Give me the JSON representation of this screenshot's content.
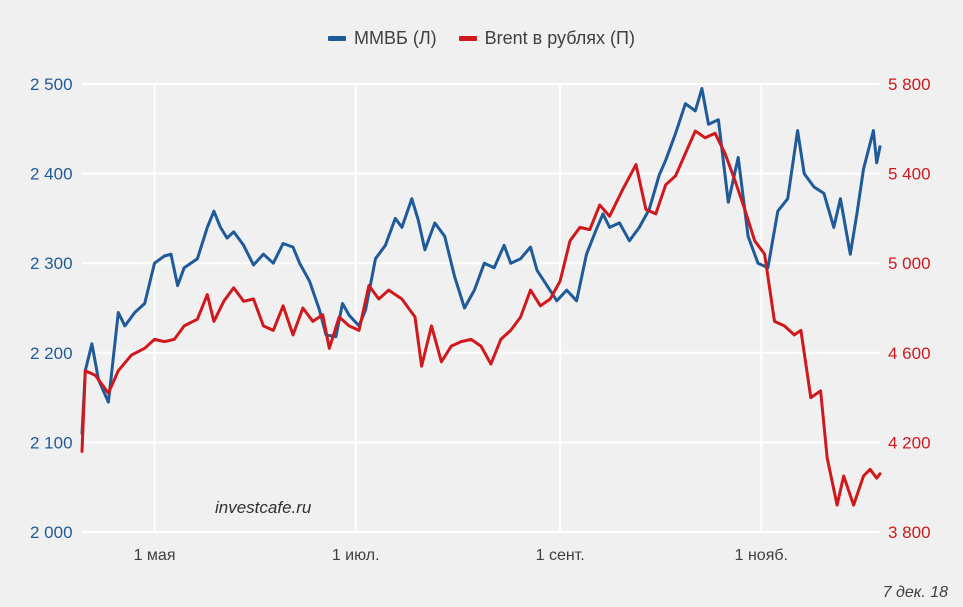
{
  "chart_data": {
    "type": "line",
    "legend_position": "top-center",
    "grid": true,
    "x_tick_labels": [
      "1 мая",
      "1 июл.",
      "1 сент.",
      "1 нояб."
    ],
    "x_tick_dates": [
      "2018-05-01",
      "2018-07-01",
      "2018-09-01",
      "2018-11-01"
    ],
    "x_range": [
      "2018-04-09",
      "2018-12-07"
    ],
    "y_left": {
      "min": 2000,
      "max": 2500,
      "ticks": [
        2000,
        2100,
        2200,
        2300,
        2400,
        2500
      ],
      "tick_labels": [
        "2 000",
        "2 100",
        "2 200",
        "2 300",
        "2 400",
        "2 500"
      ],
      "color": "#1f5a99"
    },
    "y_right": {
      "min": 3800,
      "max": 5800,
      "ticks": [
        3800,
        4200,
        4600,
        5000,
        5400,
        5800
      ],
      "tick_labels": [
        "3 800",
        "4 200",
        "4 600",
        "5 000",
        "5 400",
        "5 800"
      ],
      "color": "#d0191c"
    },
    "series": [
      {
        "name": "ММВБ (Л)",
        "axis": "left",
        "color": "#1f5a99",
        "points": [
          [
            "2018-04-09",
            2110
          ],
          [
            "2018-04-10",
            2180
          ],
          [
            "2018-04-12",
            2210
          ],
          [
            "2018-04-14",
            2170
          ],
          [
            "2018-04-17",
            2145
          ],
          [
            "2018-04-20",
            2245
          ],
          [
            "2018-04-22",
            2230
          ],
          [
            "2018-04-25",
            2245
          ],
          [
            "2018-04-28",
            2255
          ],
          [
            "2018-05-01",
            2300
          ],
          [
            "2018-05-04",
            2308
          ],
          [
            "2018-05-06",
            2310
          ],
          [
            "2018-05-08",
            2275
          ],
          [
            "2018-05-10",
            2295
          ],
          [
            "2018-05-14",
            2305
          ],
          [
            "2018-05-17",
            2340
          ],
          [
            "2018-05-19",
            2358
          ],
          [
            "2018-05-21",
            2340
          ],
          [
            "2018-05-23",
            2328
          ],
          [
            "2018-05-25",
            2335
          ],
          [
            "2018-05-28",
            2320
          ],
          [
            "2018-05-31",
            2298
          ],
          [
            "2018-06-03",
            2310
          ],
          [
            "2018-06-06",
            2300
          ],
          [
            "2018-06-09",
            2322
          ],
          [
            "2018-06-12",
            2318
          ],
          [
            "2018-06-14",
            2300
          ],
          [
            "2018-06-17",
            2280
          ],
          [
            "2018-06-20",
            2248
          ],
          [
            "2018-06-22",
            2220
          ],
          [
            "2018-06-25",
            2218
          ],
          [
            "2018-06-27",
            2255
          ],
          [
            "2018-06-29",
            2242
          ],
          [
            "2018-07-02",
            2230
          ],
          [
            "2018-07-04",
            2248
          ],
          [
            "2018-07-07",
            2305
          ],
          [
            "2018-07-10",
            2320
          ],
          [
            "2018-07-13",
            2350
          ],
          [
            "2018-07-15",
            2340
          ],
          [
            "2018-07-18",
            2372
          ],
          [
            "2018-07-20",
            2348
          ],
          [
            "2018-07-22",
            2315
          ],
          [
            "2018-07-25",
            2345
          ],
          [
            "2018-07-28",
            2330
          ],
          [
            "2018-07-31",
            2285
          ],
          [
            "2018-08-03",
            2250
          ],
          [
            "2018-08-06",
            2270
          ],
          [
            "2018-08-09",
            2300
          ],
          [
            "2018-08-12",
            2295
          ],
          [
            "2018-08-15",
            2320
          ],
          [
            "2018-08-17",
            2300
          ],
          [
            "2018-08-20",
            2305
          ],
          [
            "2018-08-23",
            2318
          ],
          [
            "2018-08-25",
            2292
          ],
          [
            "2018-08-28",
            2275
          ],
          [
            "2018-08-31",
            2258
          ],
          [
            "2018-09-03",
            2270
          ],
          [
            "2018-09-06",
            2258
          ],
          [
            "2018-09-09",
            2310
          ],
          [
            "2018-09-12",
            2338
          ],
          [
            "2018-09-14",
            2355
          ],
          [
            "2018-09-16",
            2340
          ],
          [
            "2018-09-19",
            2345
          ],
          [
            "2018-09-22",
            2325
          ],
          [
            "2018-09-25",
            2340
          ],
          [
            "2018-09-28",
            2360
          ],
          [
            "2018-10-01",
            2398
          ],
          [
            "2018-10-03",
            2415
          ],
          [
            "2018-10-06",
            2445
          ],
          [
            "2018-10-09",
            2478
          ],
          [
            "2018-10-12",
            2470
          ],
          [
            "2018-10-14",
            2495
          ],
          [
            "2018-10-16",
            2455
          ],
          [
            "2018-10-19",
            2460
          ],
          [
            "2018-10-22",
            2368
          ],
          [
            "2018-10-25",
            2418
          ],
          [
            "2018-10-28",
            2330
          ],
          [
            "2018-10-31",
            2300
          ],
          [
            "2018-11-03",
            2295
          ],
          [
            "2018-11-06",
            2358
          ],
          [
            "2018-11-09",
            2372
          ],
          [
            "2018-11-12",
            2448
          ],
          [
            "2018-11-14",
            2400
          ],
          [
            "2018-11-17",
            2385
          ],
          [
            "2018-11-20",
            2378
          ],
          [
            "2018-11-23",
            2340
          ],
          [
            "2018-11-25",
            2372
          ],
          [
            "2018-11-28",
            2310
          ],
          [
            "2018-11-30",
            2355
          ],
          [
            "2018-12-02",
            2405
          ],
          [
            "2018-12-05",
            2448
          ],
          [
            "2018-12-06",
            2412
          ],
          [
            "2018-12-07",
            2430
          ]
        ]
      },
      {
        "name": "Brent в рублях (П)",
        "axis": "right",
        "color": "#d0191c",
        "points": [
          [
            "2018-04-09",
            4160
          ],
          [
            "2018-04-10",
            4520
          ],
          [
            "2018-04-13",
            4500
          ],
          [
            "2018-04-17",
            4420
          ],
          [
            "2018-04-20",
            4520
          ],
          [
            "2018-04-24",
            4590
          ],
          [
            "2018-04-28",
            4620
          ],
          [
            "2018-05-01",
            4660
          ],
          [
            "2018-05-04",
            4650
          ],
          [
            "2018-05-07",
            4660
          ],
          [
            "2018-05-10",
            4720
          ],
          [
            "2018-05-14",
            4750
          ],
          [
            "2018-05-17",
            4860
          ],
          [
            "2018-05-19",
            4740
          ],
          [
            "2018-05-22",
            4830
          ],
          [
            "2018-05-25",
            4890
          ],
          [
            "2018-05-28",
            4830
          ],
          [
            "2018-05-31",
            4840
          ],
          [
            "2018-06-03",
            4720
          ],
          [
            "2018-06-06",
            4700
          ],
          [
            "2018-06-09",
            4810
          ],
          [
            "2018-06-12",
            4680
          ],
          [
            "2018-06-15",
            4800
          ],
          [
            "2018-06-18",
            4740
          ],
          [
            "2018-06-21",
            4770
          ],
          [
            "2018-06-23",
            4620
          ],
          [
            "2018-06-26",
            4760
          ],
          [
            "2018-06-29",
            4720
          ],
          [
            "2018-07-02",
            4700
          ],
          [
            "2018-07-05",
            4900
          ],
          [
            "2018-07-08",
            4840
          ],
          [
            "2018-07-11",
            4880
          ],
          [
            "2018-07-15",
            4840
          ],
          [
            "2018-07-19",
            4760
          ],
          [
            "2018-07-21",
            4540
          ],
          [
            "2018-07-24",
            4720
          ],
          [
            "2018-07-27",
            4560
          ],
          [
            "2018-07-30",
            4630
          ],
          [
            "2018-08-02",
            4650
          ],
          [
            "2018-08-05",
            4660
          ],
          [
            "2018-08-08",
            4630
          ],
          [
            "2018-08-11",
            4550
          ],
          [
            "2018-08-14",
            4660
          ],
          [
            "2018-08-17",
            4700
          ],
          [
            "2018-08-20",
            4760
          ],
          [
            "2018-08-23",
            4880
          ],
          [
            "2018-08-26",
            4810
          ],
          [
            "2018-08-29",
            4840
          ],
          [
            "2018-09-01",
            4920
          ],
          [
            "2018-09-04",
            5100
          ],
          [
            "2018-09-07",
            5160
          ],
          [
            "2018-09-10",
            5150
          ],
          [
            "2018-09-13",
            5260
          ],
          [
            "2018-09-16",
            5210
          ],
          [
            "2018-09-20",
            5330
          ],
          [
            "2018-09-24",
            5440
          ],
          [
            "2018-09-27",
            5240
          ],
          [
            "2018-09-30",
            5220
          ],
          [
            "2018-10-03",
            5350
          ],
          [
            "2018-10-06",
            5390
          ],
          [
            "2018-10-09",
            5490
          ],
          [
            "2018-10-12",
            5590
          ],
          [
            "2018-10-15",
            5560
          ],
          [
            "2018-10-18",
            5580
          ],
          [
            "2018-10-21",
            5490
          ],
          [
            "2018-10-24",
            5370
          ],
          [
            "2018-10-27",
            5240
          ],
          [
            "2018-10-30",
            5100
          ],
          [
            "2018-11-02",
            5040
          ],
          [
            "2018-11-05",
            4740
          ],
          [
            "2018-11-08",
            4720
          ],
          [
            "2018-11-11",
            4680
          ],
          [
            "2018-11-13",
            4700
          ],
          [
            "2018-11-16",
            4400
          ],
          [
            "2018-11-19",
            4430
          ],
          [
            "2018-11-21",
            4130
          ],
          [
            "2018-11-24",
            3920
          ],
          [
            "2018-11-26",
            4050
          ],
          [
            "2018-11-29",
            3920
          ],
          [
            "2018-12-02",
            4050
          ],
          [
            "2018-12-04",
            4080
          ],
          [
            "2018-12-06",
            4040
          ],
          [
            "2018-12-07",
            4060
          ]
        ]
      }
    ]
  },
  "watermark": "investcafe.ru",
  "date_note": "7 дек. 18"
}
